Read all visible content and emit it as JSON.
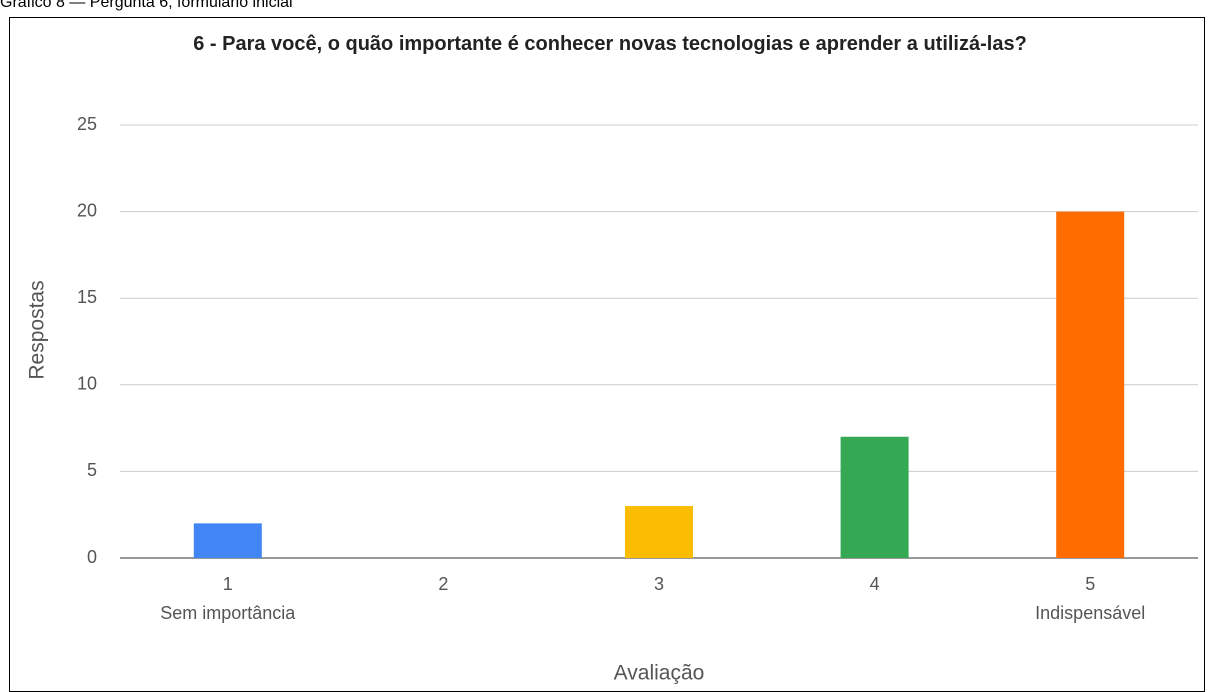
{
  "caption": "Gráfico 8 — Pergunta 6, formulário inicial",
  "chart_data": {
    "type": "bar",
    "title": "6 - Para você, o quão importante é conhecer novas tecnologias e aprender a utilizá-las?",
    "categories": [
      "1",
      "2",
      "3",
      "4",
      "5"
    ],
    "category_sublabels": [
      "Sem importância",
      null,
      null,
      null,
      "Indispensável"
    ],
    "values": [
      2,
      0,
      3,
      7,
      20
    ],
    "colors": [
      "#4285f4",
      "#ea4335",
      "#fbbc04",
      "#34a853",
      "#ff6d01"
    ],
    "x_label": "Avaliação",
    "y_label": "Respostas",
    "ylim": [
      0,
      25
    ],
    "yticks": [
      0,
      5,
      10,
      15,
      20,
      25
    ],
    "grid": true
  }
}
